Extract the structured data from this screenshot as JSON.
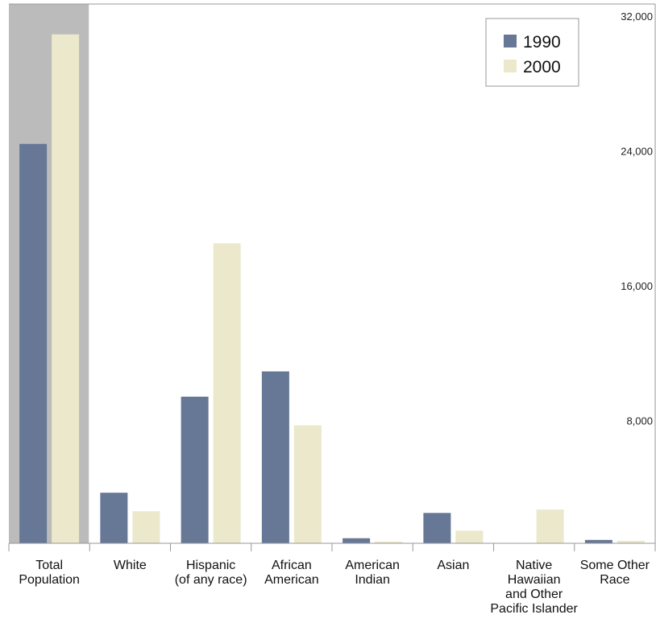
{
  "chart_data": {
    "type": "bar",
    "categories": [
      [
        "Total",
        "Population"
      ],
      [
        "White"
      ],
      [
        "Hispanic",
        "(of any race)"
      ],
      [
        "African",
        "American"
      ],
      [
        "American",
        "Indian"
      ],
      [
        "Asian"
      ],
      [
        "Native",
        "Hawaiian",
        "and Other",
        "Pacific Islander"
      ],
      [
        "Some Other",
        "Race"
      ]
    ],
    "series": [
      {
        "name": "1990",
        "color": "#667896",
        "values": [
          23700,
          3000,
          8700,
          10200,
          300,
          1800,
          0,
          200
        ]
      },
      {
        "name": "2000",
        "color": "#ebe8cc",
        "values": [
          30200,
          1900,
          17800,
          7000,
          100,
          750,
          2000,
          150
        ]
      }
    ],
    "ylim": [
      0,
      32000
    ],
    "yticks": [
      8000,
      16000,
      24000,
      32000
    ],
    "ytick_labels": [
      "8,000",
      "16,000",
      "24,000",
      "32,000"
    ],
    "y_axis_position": "right",
    "grid": false,
    "legend_position": "top-right",
    "highlighted_category": "Total Population",
    "highlight_color": "#bbbbbb",
    "title": "",
    "xlabel": "",
    "ylabel": ""
  }
}
